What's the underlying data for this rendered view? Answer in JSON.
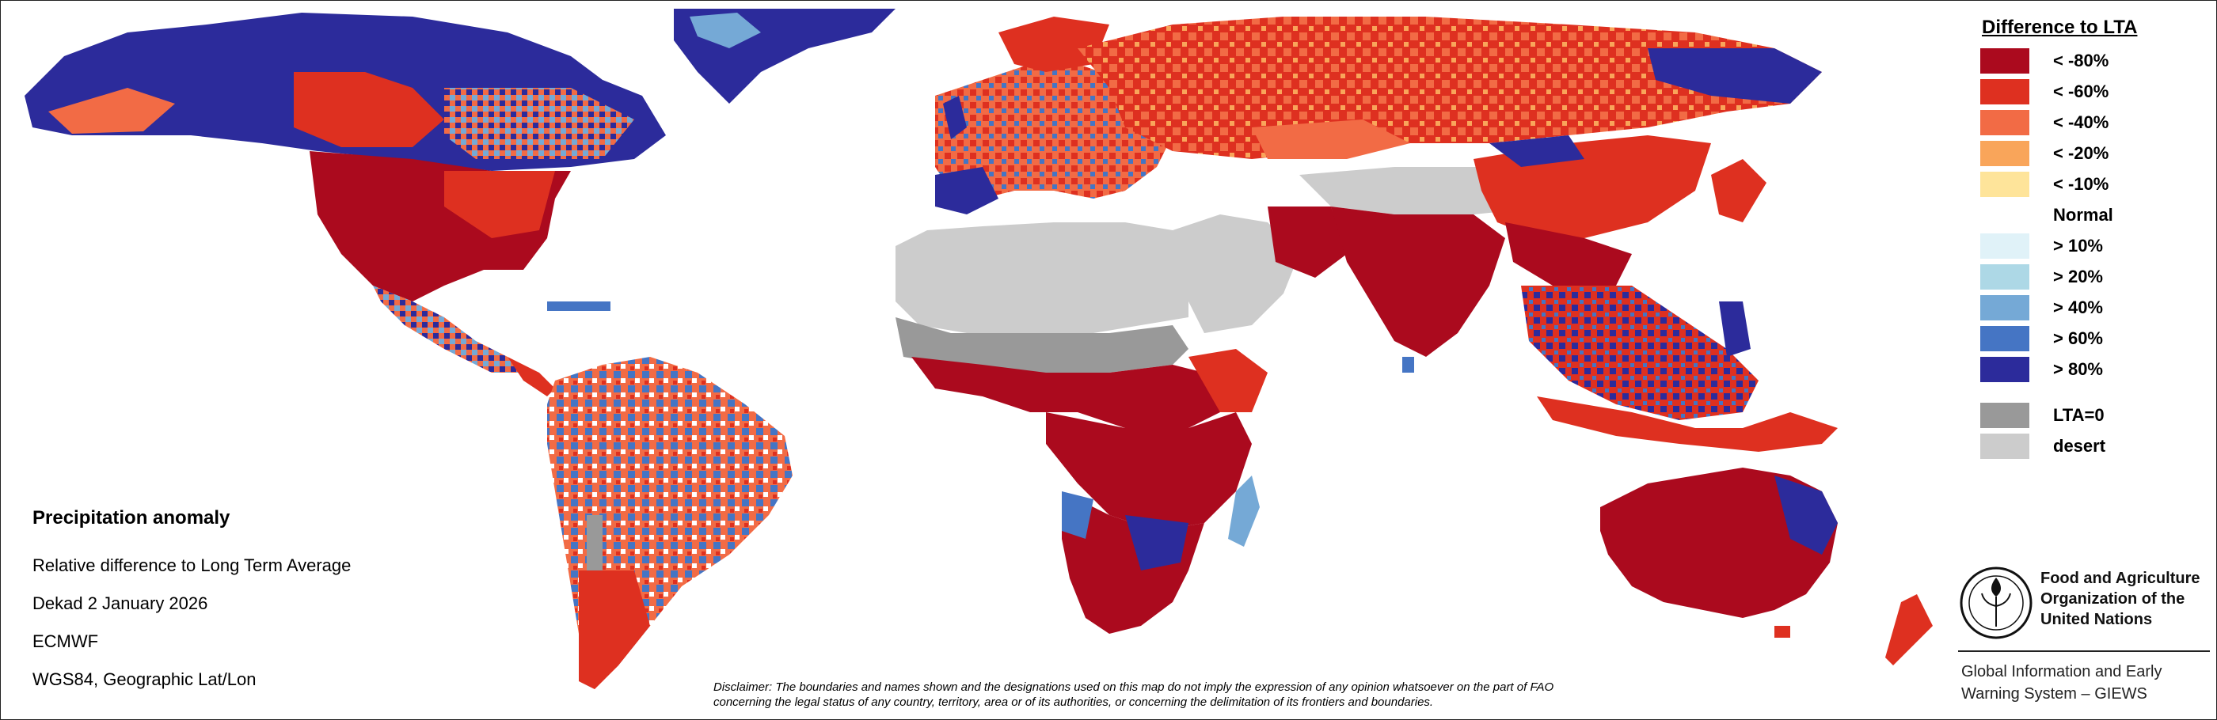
{
  "legend": {
    "title": "Difference to LTA",
    "items": [
      {
        "label": "< -80%",
        "color": "#ab0a1e"
      },
      {
        "label": "< -60%",
        "color": "#de3020"
      },
      {
        "label": "< -40%",
        "color": "#f26b45"
      },
      {
        "label": "< -20%",
        "color": "#f9a55a"
      },
      {
        "label": "< -10%",
        "color": "#fee49a"
      },
      {
        "label": "Normal",
        "color": "#ffffff"
      },
      {
        "label": "> 10%",
        "color": "#e0f2f8"
      },
      {
        "label": "> 20%",
        "color": "#add8e6"
      },
      {
        "label": "> 40%",
        "color": "#75a9d6"
      },
      {
        "label": "> 60%",
        "color": "#4575c4"
      },
      {
        "label": "> 80%",
        "color": "#2c2b9b"
      },
      {
        "label": "LTA=0",
        "color": "#999999"
      },
      {
        "label": "desert",
        "color": "#cccccc"
      }
    ]
  },
  "info": {
    "title": "Precipitation anomaly",
    "lines": [
      "Relative difference to Long Term Average",
      "Dekad 2 January 2026",
      "ECMWF",
      "WGS84, Geographic Lat/Lon"
    ]
  },
  "disclaimer": {
    "line1": "Disclaimer: The boundaries and names shown and the designations used on this map do not imply the expression of any opinion whatsoever on the part of FAO",
    "line2": "concerning the legal status of any country, territory, area or of its authorities, or concerning the delimitation of its frontiers and boundaries."
  },
  "fao": {
    "logo_text": "FAO",
    "name_lines": [
      "Food and Agriculture",
      "Organization of the",
      "United Nations"
    ],
    "giews_lines": [
      "Global Information and Early",
      "Warning System – GIEWS"
    ]
  },
  "map_regions": [
    {
      "name": "north-america",
      "class": "dry-strong"
    },
    {
      "name": "canada",
      "class": "wet-strong"
    },
    {
      "name": "greenland",
      "class": "wet-strong"
    },
    {
      "name": "south-america",
      "class": "mixed"
    },
    {
      "name": "europe",
      "class": "mixed"
    },
    {
      "name": "russia",
      "class": "dry"
    },
    {
      "name": "sahara",
      "class": "desert"
    },
    {
      "name": "sahel",
      "class": "lta-zero"
    },
    {
      "name": "central-africa",
      "class": "dry-strong"
    },
    {
      "name": "southern-africa",
      "class": "mixed"
    },
    {
      "name": "middle-east",
      "class": "desert"
    },
    {
      "name": "central-asia",
      "class": "desert"
    },
    {
      "name": "south-asia",
      "class": "dry-strong"
    },
    {
      "name": "east-asia",
      "class": "dry"
    },
    {
      "name": "southeast-asia",
      "class": "mixed"
    },
    {
      "name": "australia",
      "class": "dry-strong"
    },
    {
      "name": "new-zealand",
      "class": "dry"
    },
    {
      "name": "madagascar",
      "class": "mixed"
    }
  ]
}
